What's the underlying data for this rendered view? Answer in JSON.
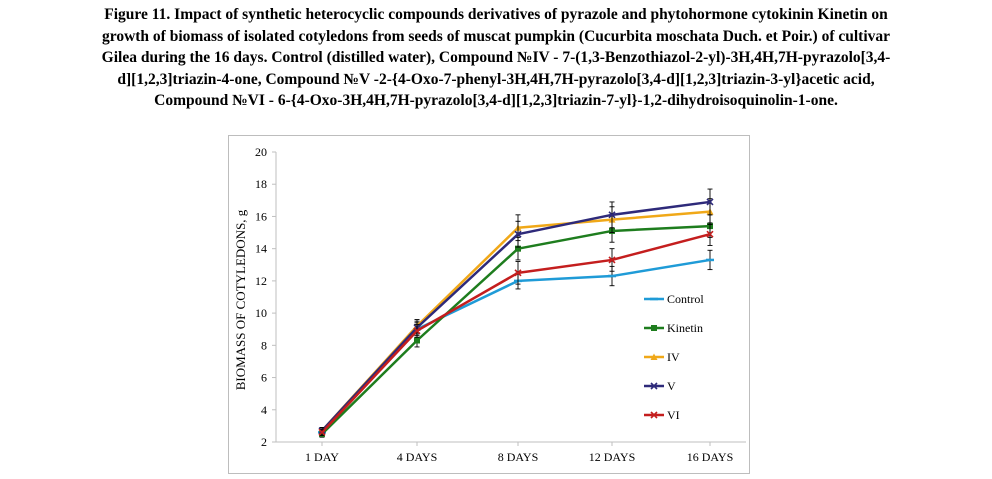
{
  "caption": {
    "line1": "Figure 11. Impact of synthetic heterocyclic compounds derivatives of pyrazole and phytohormone cytokinin Kinetin on",
    "line2": "growth of biomass of isolated cotyledons from seeds of muscat pumpkin (Cucurbita moschata Duch. et Poir.) of cultivar",
    "line3": "Gilea during the 16 days. Control (distilled water), Compound №IV - 7-(1,3-Benzothiazol-2-yl)-3H,4H,7H-pyrazolo[3,4-",
    "line4": "d][1,2,3]triazin-4-one, Compound №V -2-{4-Oxo-7-phenyl-3H,4H,7H-pyrazolo[3,4-d][1,2,3]triazin-3-yl}acetic acid,",
    "line5": "Compound №VI - 6-{4-Oxo-3H,4H,7H-pyrazolo[3,4-d][1,2,3]triazin-7-yl}-1,2-dihydroisoquinolin-1-one."
  },
  "chart_data": {
    "type": "line",
    "categories": [
      "1 DAY",
      "4 DAYS",
      "8 DAYS",
      "12 DAYS",
      "16 DAYS"
    ],
    "ylabel": "BIOMASS OF COTYLEDONS, g",
    "xlabel": "",
    "ylim": [
      2,
      20
    ],
    "yticks": [
      2,
      4,
      6,
      8,
      10,
      12,
      14,
      16,
      18,
      20
    ],
    "grid": false,
    "legend_position": "right",
    "series": [
      {
        "name": "Control",
        "color": "#1f9bd7",
        "marker": "dash",
        "values": [
          2.6,
          9.0,
          12.0,
          12.3,
          13.3
        ],
        "errors": [
          0.2,
          0.4,
          0.5,
          0.6,
          0.6
        ]
      },
      {
        "name": "Kinetin",
        "color": "#1e7d1e",
        "marker": "square",
        "values": [
          2.5,
          8.3,
          14.0,
          15.1,
          15.4
        ],
        "errors": [
          0.2,
          0.4,
          0.7,
          0.7,
          0.7
        ]
      },
      {
        "name": "IV",
        "color": "#f0a818",
        "marker": "triangle",
        "values": [
          2.7,
          9.2,
          15.3,
          15.8,
          16.3
        ],
        "errors": [
          0.2,
          0.4,
          0.8,
          0.8,
          0.8
        ]
      },
      {
        "name": "V",
        "color": "#2e2a7a",
        "marker": "x",
        "values": [
          2.7,
          9.1,
          14.9,
          16.1,
          16.9
        ],
        "errors": [
          0.2,
          0.4,
          0.8,
          0.8,
          0.8
        ]
      },
      {
        "name": "VI",
        "color": "#c41e1e",
        "marker": "x",
        "values": [
          2.6,
          8.9,
          12.5,
          13.3,
          14.9
        ],
        "errors": [
          0.2,
          0.4,
          0.7,
          0.7,
          0.7
        ]
      }
    ]
  }
}
